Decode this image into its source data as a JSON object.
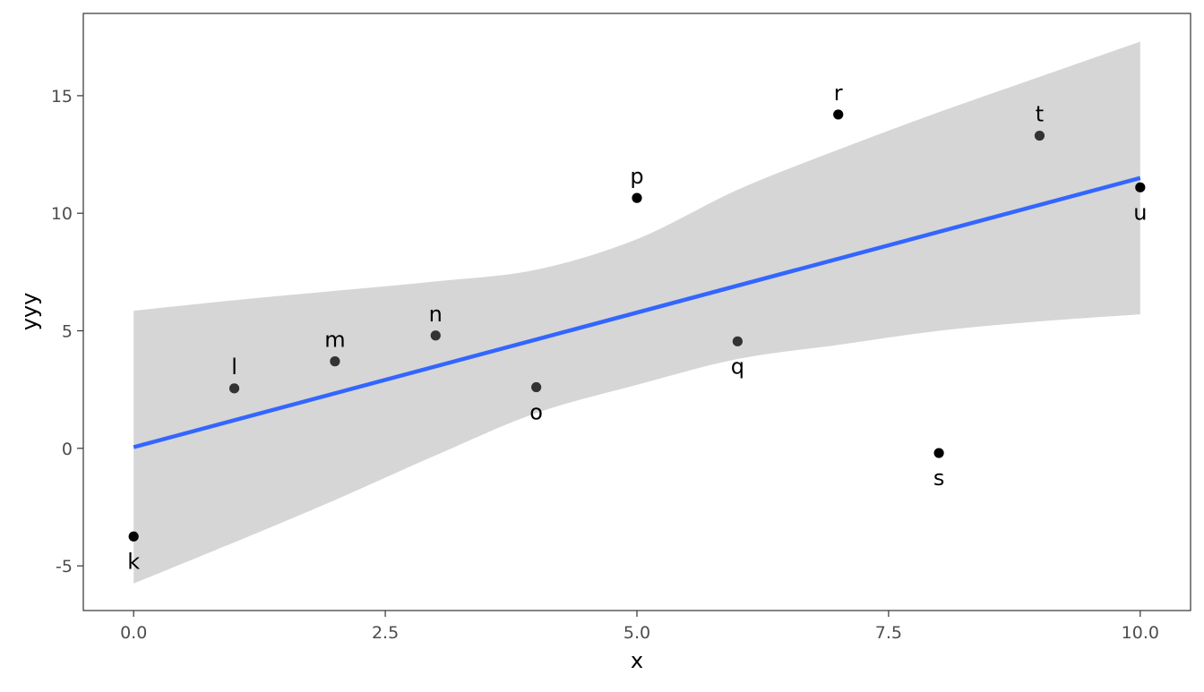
{
  "chart_data": {
    "type": "scatter",
    "xlabel": "x",
    "ylabel": "yyy",
    "xlim": [
      -0.5,
      10.5
    ],
    "ylim": [
      -6.9,
      18.5
    ],
    "x_ticks": [
      0.0,
      2.5,
      5.0,
      7.5,
      10.0
    ],
    "x_tick_labels": [
      "0.0",
      "2.5",
      "5.0",
      "7.5",
      "10.0"
    ],
    "y_ticks": [
      -5,
      0,
      5,
      10,
      15
    ],
    "y_tick_labels": [
      "-5",
      "0",
      "5",
      "10",
      "15"
    ],
    "grid": false,
    "points": [
      {
        "label": "k",
        "x": 0,
        "y": -3.75,
        "label_pos": "below",
        "color": "#000000"
      },
      {
        "label": "l",
        "x": 1,
        "y": 2.55,
        "label_pos": "above",
        "color": "#333333"
      },
      {
        "label": "m",
        "x": 2,
        "y": 3.7,
        "label_pos": "above",
        "color": "#333333"
      },
      {
        "label": "n",
        "x": 3,
        "y": 4.8,
        "label_pos": "above",
        "color": "#333333"
      },
      {
        "label": "o",
        "x": 4,
        "y": 2.6,
        "label_pos": "below",
        "color": "#333333"
      },
      {
        "label": "p",
        "x": 5,
        "y": 10.65,
        "label_pos": "above",
        "color": "#000000"
      },
      {
        "label": "q",
        "x": 6,
        "y": 4.55,
        "label_pos": "below",
        "color": "#333333"
      },
      {
        "label": "r",
        "x": 7,
        "y": 14.2,
        "label_pos": "above",
        "color": "#000000"
      },
      {
        "label": "s",
        "x": 8,
        "y": -0.2,
        "label_pos": "below",
        "color": "#000000"
      },
      {
        "label": "t",
        "x": 9,
        "y": 13.3,
        "label_pos": "above",
        "color": "#333333"
      },
      {
        "label": "u",
        "x": 10,
        "y": 11.1,
        "label_pos": "below",
        "color": "#000000"
      }
    ],
    "trend_line": {
      "method": "lm",
      "x": [
        0,
        10
      ],
      "y": [
        0.05,
        11.5
      ],
      "color": "#3366ff"
    },
    "confidence_band": {
      "color": "#d6d6d6",
      "x": [
        0,
        1,
        2,
        3,
        4,
        5,
        6,
        7,
        8,
        9,
        10
      ],
      "upper": [
        5.85,
        6.3,
        6.7,
        7.1,
        7.6,
        8.9,
        11.0,
        12.7,
        14.3,
        15.8,
        17.3
      ],
      "lower": [
        -5.75,
        -4.0,
        -2.2,
        -0.3,
        1.5,
        2.7,
        3.8,
        4.4,
        5.0,
        5.4,
        5.7
      ]
    }
  }
}
